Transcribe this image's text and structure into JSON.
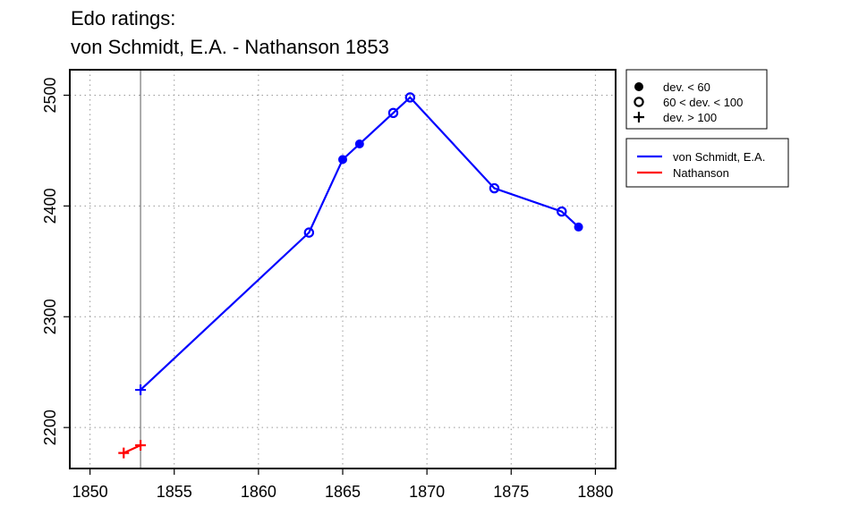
{
  "chart_data": {
    "type": "line",
    "title_lines": [
      "Edo ratings:",
      "von Schmidt, E.A. - Nathanson 1853"
    ],
    "xlabel": "",
    "ylabel": "",
    "xlim": [
      1848.8,
      1881.2
    ],
    "ylim": [
      2163,
      2523
    ],
    "x_ticks": [
      1850,
      1855,
      1860,
      1865,
      1870,
      1875,
      1880
    ],
    "y_ticks": [
      2200,
      2300,
      2400,
      2500
    ],
    "grid": true,
    "marker_line_x": 1853,
    "series": [
      {
        "name": "von Schmidt, E.A.",
        "color": "#0000ff",
        "points": [
          {
            "x": 1853,
            "y": 2234,
            "marker": "plus"
          },
          {
            "x": 1863,
            "y": 2376,
            "marker": "open"
          },
          {
            "x": 1865,
            "y": 2442,
            "marker": "filled"
          },
          {
            "x": 1866,
            "y": 2456,
            "marker": "filled"
          },
          {
            "x": 1868,
            "y": 2484,
            "marker": "open"
          },
          {
            "x": 1869,
            "y": 2498,
            "marker": "open"
          },
          {
            "x": 1874,
            "y": 2416,
            "marker": "open"
          },
          {
            "x": 1878,
            "y": 2395,
            "marker": "open"
          },
          {
            "x": 1879,
            "y": 2381,
            "marker": "filled"
          }
        ]
      },
      {
        "name": "Nathanson",
        "color": "#ff0000",
        "points": [
          {
            "x": 1852,
            "y": 2177,
            "marker": "plus"
          },
          {
            "x": 1853,
            "y": 2184,
            "marker": "plus"
          }
        ]
      }
    ],
    "marker_legend": [
      {
        "symbol": "filled",
        "label": "dev. < 60"
      },
      {
        "symbol": "open",
        "label": "60 < dev. < 100"
      },
      {
        "symbol": "plus",
        "label": "dev. > 100"
      }
    ],
    "legend_position": "right"
  }
}
